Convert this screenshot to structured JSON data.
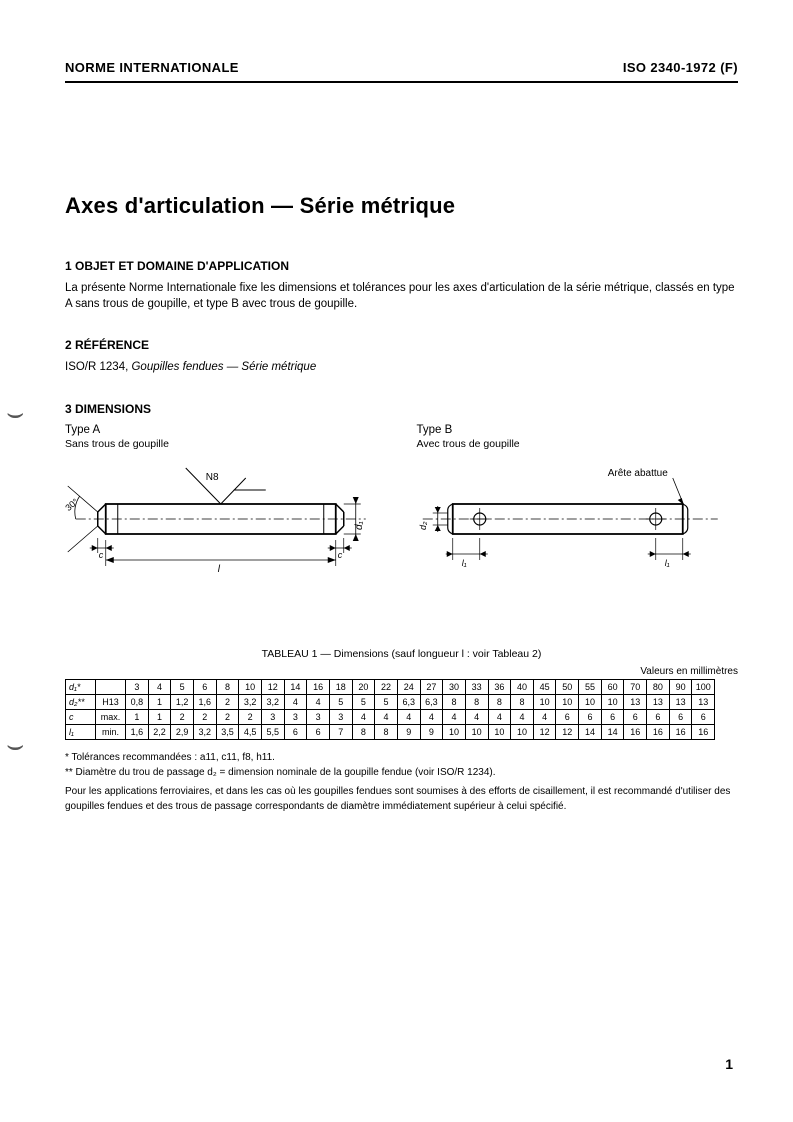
{
  "header": {
    "left": "NORME INTERNATIONALE",
    "right": "ISO 2340-1972 (F)"
  },
  "title": "Axes d'articulation — Série métrique",
  "section1": {
    "heading": "1  OBJET ET DOMAINE D'APPLICATION",
    "text": "La présente Norme Internationale fixe les dimensions et tolérances pour les axes d'articulation de la série métrique, classés en type A sans trous de goupille, et type B avec trous de goupille."
  },
  "section2": {
    "heading": "2  RÉFÉRENCE",
    "ref_code": "ISO/R 1234, ",
    "ref_title": "Goupilles fendues — Série métrique"
  },
  "section3": {
    "heading": "3  DIMENSIONS",
    "typeA": {
      "label": "Type A",
      "sub": "Sans trous de goupille"
    },
    "typeB": {
      "label": "Type B",
      "sub": "Avec trous de goupille"
    },
    "diagA": {
      "n8": "N8",
      "angle": "30°",
      "d1": "d₁",
      "c": "c",
      "l": "l"
    },
    "diagB": {
      "arete": "Arête abattue",
      "d2": "d₂",
      "l1": "l₁"
    }
  },
  "table": {
    "caption": "TABLEAU 1 — Dimensions (sauf longueur l : voir Tableau 2)",
    "unit": "Valeurs en millimètres",
    "rows": {
      "d1": {
        "label": "d₁*",
        "sub": "",
        "vals": [
          "3",
          "4",
          "5",
          "6",
          "8",
          "10",
          "12",
          "14",
          "16",
          "18",
          "20",
          "22",
          "24",
          "27",
          "30",
          "33",
          "36",
          "40",
          "45",
          "50",
          "55",
          "60",
          "70",
          "80",
          "90",
          "100"
        ]
      },
      "d2": {
        "label": "d₂**",
        "sub": "H13",
        "vals": [
          "0,8",
          "1",
          "1,2",
          "1,6",
          "2",
          "3,2",
          "3,2",
          "4",
          "4",
          "5",
          "5",
          "5",
          "6,3",
          "6,3",
          "8",
          "8",
          "8",
          "8",
          "10",
          "10",
          "10",
          "10",
          "13",
          "13",
          "13",
          "13"
        ]
      },
      "c": {
        "label": "c",
        "sub": "max.",
        "vals": [
          "1",
          "1",
          "2",
          "2",
          "2",
          "2",
          "3",
          "3",
          "3",
          "3",
          "4",
          "4",
          "4",
          "4",
          "4",
          "4",
          "4",
          "4",
          "4",
          "6",
          "6",
          "6",
          "6",
          "6",
          "6",
          "6"
        ]
      },
      "l1": {
        "label": "l₁",
        "sub": "min.",
        "vals": [
          "1,6",
          "2,2",
          "2,9",
          "3,2",
          "3,5",
          "4,5",
          "5,5",
          "6",
          "6",
          "7",
          "8",
          "8",
          "9",
          "9",
          "10",
          "10",
          "10",
          "10",
          "12",
          "12",
          "14",
          "14",
          "16",
          "16",
          "16",
          "16"
        ]
      }
    }
  },
  "footnotes": {
    "f1": "*   Tolérances recommandées : a11, c11, f8, h11.",
    "f2": "**  Diamètre du trou de passage d₂ = dimension nominale de la goupille fendue (voir ISO/R 1234).",
    "f3": "Pour les applications ferroviaires, et dans les cas où les goupilles fendues sont soumises à des efforts de cisaillement, il est recommandé d'utiliser des goupilles fendues et des trous de passage correspondants de diamètre immédiatement supérieur à celui spécifié."
  },
  "page_number": "1",
  "colors": {
    "text": "#000000",
    "background": "#ffffff",
    "rule": "#000000"
  }
}
